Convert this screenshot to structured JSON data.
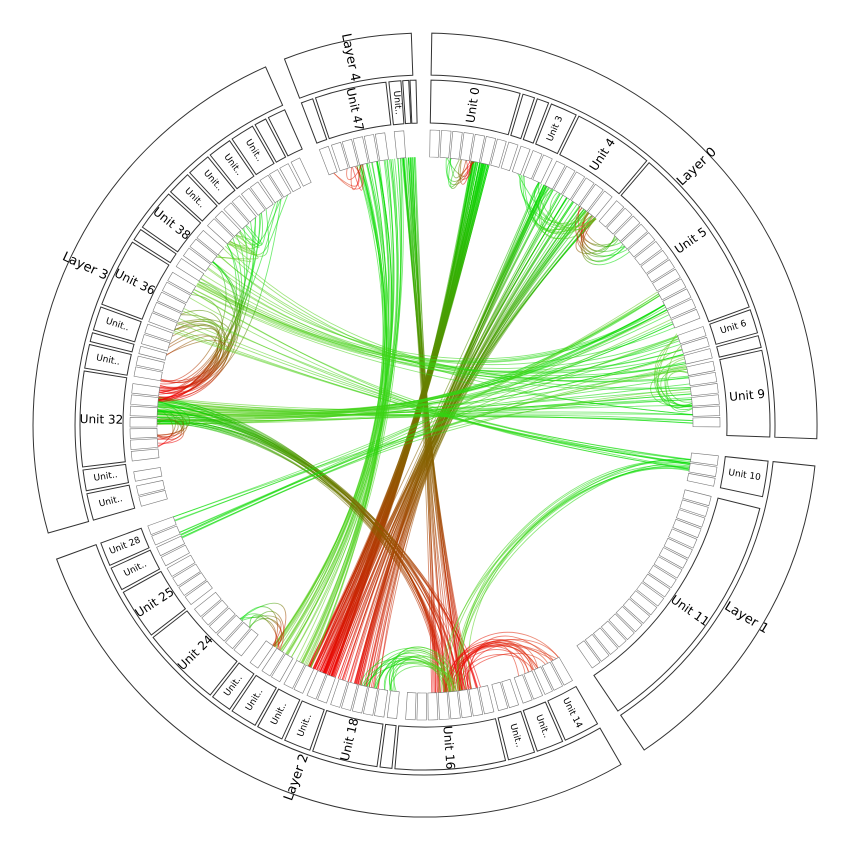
{
  "diagram": {
    "type": "hierarchical-edge-bundling",
    "colors": {
      "edge_start": "#00dd00",
      "edge_end": "#ee0000",
      "stroke": "#333333"
    },
    "layers": [
      {
        "label": "Layer 0",
        "start": 1,
        "end": 92
      },
      {
        "label": "Layer 1",
        "start": 96,
        "end": 146
      },
      {
        "label": "Layer 2",
        "start": 150,
        "end": 250
      },
      {
        "label": "Layer 3",
        "start": 254,
        "end": 336
      },
      {
        "label": "Layer 4",
        "start": 339,
        "end": 358
      }
    ],
    "units": [
      {
        "label": "Unit 0",
        "start": 1,
        "end": 16
      },
      {
        "label": "",
        "start": 16.5,
        "end": 18.5
      },
      {
        "label": "",
        "start": 19,
        "end": 21
      },
      {
        "label": "Unit 3",
        "start": 21.5,
        "end": 26
      },
      {
        "label": "Unit 4",
        "start": 26.5,
        "end": 40
      },
      {
        "label": "Unit 5",
        "start": 40.5,
        "end": 70
      },
      {
        "label": "Unit 6",
        "start": 70.5,
        "end": 74.5
      },
      {
        "label": "",
        "start": 75,
        "end": 77
      },
      {
        "label": "Unit 9",
        "start": 77.5,
        "end": 92
      },
      {
        "label": "Unit 10",
        "start": 96,
        "end": 102
      },
      {
        "label": "Unit 11",
        "start": 104,
        "end": 146
      },
      {
        "label": "Unit 14",
        "start": 150,
        "end": 156
      },
      {
        "label": "Unit..",
        "start": 156.5,
        "end": 161
      },
      {
        "label": "Unit..",
        "start": 161.5,
        "end": 166
      },
      {
        "label": "Unit 16",
        "start": 166.5,
        "end": 185
      },
      {
        "label": "",
        "start": 185.5,
        "end": 187.5
      },
      {
        "label": "Unit 18",
        "start": 188,
        "end": 199
      },
      {
        "label": "Unit..",
        "start": 199.5,
        "end": 204
      },
      {
        "label": "Unit..",
        "start": 204.5,
        "end": 209
      },
      {
        "label": "Unit..",
        "start": 209.5,
        "end": 214
      },
      {
        "label": "Unit..",
        "start": 214.5,
        "end": 218
      },
      {
        "label": "Unit 24",
        "start": 218.5,
        "end": 232
      },
      {
        "label": "Unit 25",
        "start": 232.5,
        "end": 241
      },
      {
        "label": "Unit..",
        "start": 241.5,
        "end": 245.5
      },
      {
        "label": "Unit 28",
        "start": 246,
        "end": 250
      },
      {
        "label": "Unit..",
        "start": 254,
        "end": 258.5
      },
      {
        "label": "Unit..",
        "start": 259,
        "end": 262.5
      },
      {
        "label": "Unit 32",
        "start": 263,
        "end": 279
      },
      {
        "label": "Unit..",
        "start": 279.5,
        "end": 283.5
      },
      {
        "label": "",
        "start": 284,
        "end": 285.5
      },
      {
        "label": "Unit..",
        "start": 286,
        "end": 290
      },
      {
        "label": "Unit 36",
        "start": 290.5,
        "end": 302
      },
      {
        "label": "",
        "start": 302.5,
        "end": 304.5
      },
      {
        "label": "Unit 38",
        "start": 305,
        "end": 312
      },
      {
        "label": "Unit..",
        "start": 312.5,
        "end": 316.5
      },
      {
        "label": "Unit..",
        "start": 317,
        "end": 321
      },
      {
        "label": "Unit..",
        "start": 321.5,
        "end": 325.5
      },
      {
        "label": "Unit..",
        "start": 326,
        "end": 330
      },
      {
        "label": "",
        "start": 330.5,
        "end": 332.5
      },
      {
        "label": "",
        "start": 333,
        "end": 336
      },
      {
        "label": "",
        "start": 339,
        "end": 341
      },
      {
        "label": "Unit 47",
        "start": 341.5,
        "end": 353.5
      },
      {
        "label": "Unit..",
        "start": 354,
        "end": 356
      },
      {
        "label": "",
        "start": 356.3,
        "end": 357.3
      },
      {
        "label": "",
        "start": 357.5,
        "end": 358.5
      }
    ],
    "bundles": [
      {
        "from": [
          10,
          14
        ],
        "to": [
          200,
          206
        ],
        "count": 60,
        "color": "green-red"
      },
      {
        "from": [
          25,
          40
        ],
        "to": [
          190,
          205
        ],
        "count": 55,
        "color": "green-red"
      },
      {
        "from": [
          345,
          355
        ],
        "to": [
          205,
          215
        ],
        "count": 35,
        "color": "green"
      },
      {
        "from": [
          355,
          358
        ],
        "to": [
          170,
          180
        ],
        "count": 25,
        "color": "green-red"
      },
      {
        "from": [
          60,
          90
        ],
        "to": [
          270,
          276
        ],
        "count": 35,
        "color": "green"
      },
      {
        "from": [
          60,
          88
        ],
        "to": [
          300,
          312
        ],
        "count": 20,
        "color": "green"
      },
      {
        "from": [
          270,
          276
        ],
        "to": [
          168,
          178
        ],
        "count": 30,
        "color": "green-red"
      },
      {
        "from": [
          285,
          330
        ],
        "to": [
          275,
          280
        ],
        "count": 30,
        "color": "green-red"
      },
      {
        "from": [
          245,
          250
        ],
        "to": [
          60,
          85
        ],
        "count": 12,
        "color": "green"
      },
      {
        "from": [
          97,
          100
        ],
        "to": [
          170,
          178
        ],
        "count": 10,
        "color": "green"
      },
      {
        "from": [
          97,
          100
        ],
        "to": [
          290,
          300
        ],
        "count": 10,
        "color": "green"
      },
      {
        "from": [
          150,
          160
        ],
        "to": [
          170,
          176
        ],
        "count": 20,
        "color": "red"
      },
      {
        "from": [
          186,
          195
        ],
        "to": [
          172,
          176
        ],
        "count": 20,
        "color": "green"
      },
      {
        "from": [
          4,
          8
        ],
        "to": [
          8,
          11
        ],
        "count": 8,
        "color": "green-red"
      },
      {
        "from": [
          45,
          50
        ],
        "to": [
          35,
          40
        ],
        "count": 12,
        "color": "green-red"
      },
      {
        "from": [
          20,
          30
        ],
        "to": [
          36,
          40
        ],
        "count": 14,
        "color": "green"
      },
      {
        "from": [
          85,
          90
        ],
        "to": [
          70,
          80
        ],
        "count": 10,
        "color": "green"
      },
      {
        "from": [
          340,
          345
        ],
        "to": [
          343,
          347
        ],
        "count": 5,
        "color": "red"
      },
      {
        "from": [
          305,
          330
        ],
        "to": [
          312,
          318
        ],
        "count": 12,
        "color": "green"
      },
      {
        "from": [
          270,
          276
        ],
        "to": [
          265,
          268
        ],
        "count": 10,
        "color": "green-red"
      },
      {
        "from": [
          220,
          225
        ],
        "to": [
          212,
          215
        ],
        "count": 8,
        "color": "green-red"
      }
    ]
  }
}
